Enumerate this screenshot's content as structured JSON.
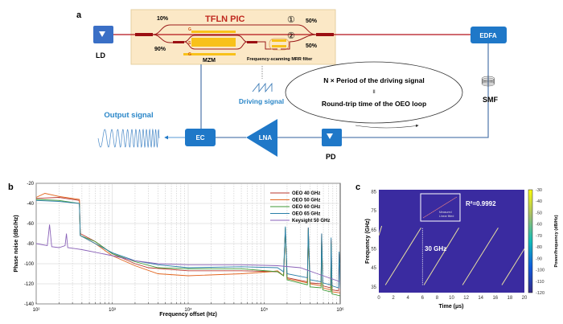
{
  "panel_a": {
    "label": "a",
    "pic_title": "TFLN PIC",
    "split_top": "10%",
    "split_bottom": "90%",
    "port1": "①",
    "port2": "②",
    "out_top": "50%",
    "out_bottom": "50%",
    "electrode_g1": "G",
    "electrode_s": "S",
    "electrode_g2": "G",
    "mzm": "MZM",
    "mrr": "Frequency-scanning MRR  filter",
    "ld": "LD",
    "edfa": "EDFA",
    "smf": "SMF",
    "pd": "PD",
    "lna": "LNA",
    "ec": "EC",
    "output": "Output signal",
    "driving": "Driving signal",
    "eq_top": "N × Period of the driving signal",
    "eq_mid": "II",
    "eq_bottom": "Round-trip time of the OEO loop",
    "colors": {
      "blue": "#1f78c8",
      "red": "#b3121a",
      "chip": "#fbe8c6",
      "electrode": "#f8c11a",
      "text_blue": "#2a86c8"
    }
  },
  "chart_data": [
    {
      "panel": "b",
      "type": "line",
      "xlabel": "Frequency offset (Hz)",
      "ylabel": "Phase noise (dBc/Hz)",
      "xscale": "log",
      "xlim": [
        100,
        1000000
      ],
      "ylim": [
        -140,
        -20
      ],
      "xticks": [
        "10²",
        "10³",
        "10⁴",
        "10⁵",
        "10⁶"
      ],
      "yticks": [
        "-20",
        "-40",
        "-60",
        "-80",
        "-100",
        "-120",
        "-140"
      ],
      "grid": true,
      "legend": "top-right",
      "series": [
        {
          "name": "OEO 40 GHz",
          "color": "#b8392f",
          "points": [
            [
              100,
              -35
            ],
            [
              200,
              -34
            ],
            [
              370,
              -37
            ],
            [
              380,
              -70
            ],
            [
              600,
              -78
            ],
            [
              1000,
              -90
            ],
            [
              2000,
              -100
            ],
            [
              3000,
              -104
            ],
            [
              10000,
              -107
            ],
            [
              50000,
              -107
            ],
            [
              150000,
              -108
            ],
            [
              180000,
              -112
            ],
            [
              190000,
              -65
            ],
            [
              200000,
              -114
            ],
            [
              370000,
              -118
            ],
            [
              380000,
              -64
            ],
            [
              400000,
              -119
            ],
            [
              560000,
              -120
            ],
            [
              570000,
              -70
            ],
            [
              590000,
              -122
            ],
            [
              750000,
              -124
            ],
            [
              760000,
              -76
            ],
            [
              780000,
              -126
            ],
            [
              950000,
              -127
            ],
            [
              970000,
              -90
            ],
            [
              1000000,
              -128
            ]
          ]
        },
        {
          "name": "OEO 50 GHz",
          "color": "#e2651e",
          "points": [
            [
              100,
              -34
            ],
            [
              130,
              -30
            ],
            [
              200,
              -33
            ],
            [
              370,
              -36
            ],
            [
              380,
              -72
            ],
            [
              600,
              -80
            ],
            [
              1000,
              -92
            ],
            [
              2000,
              -102
            ],
            [
              4000,
              -110
            ],
            [
              10000,
              -112
            ],
            [
              50000,
              -110
            ],
            [
              120000,
              -108
            ],
            [
              150000,
              -107
            ],
            [
              180000,
              -112
            ],
            [
              190000,
              -66
            ],
            [
              200000,
              -115
            ],
            [
              370000,
              -119
            ],
            [
              380000,
              -65
            ],
            [
              400000,
              -120
            ],
            [
              560000,
              -122
            ],
            [
              570000,
              -72
            ],
            [
              590000,
              -124
            ],
            [
              750000,
              -126
            ],
            [
              760000,
              -78
            ],
            [
              780000,
              -128
            ],
            [
              1000000,
              -129
            ]
          ]
        },
        {
          "name": "OEO 60 GHz",
          "color": "#3f9a36",
          "points": [
            [
              100,
              -36
            ],
            [
              200,
              -37
            ],
            [
              370,
              -40
            ],
            [
              380,
              -72
            ],
            [
              600,
              -78
            ],
            [
              1000,
              -90
            ],
            [
              2000,
              -98
            ],
            [
              4000,
              -104
            ],
            [
              10000,
              -105
            ],
            [
              50000,
              -105
            ],
            [
              150000,
              -108
            ],
            [
              180000,
              -112
            ],
            [
              190000,
              -64
            ],
            [
              200000,
              -116
            ],
            [
              370000,
              -121
            ],
            [
              380000,
              -66
            ],
            [
              400000,
              -123
            ],
            [
              560000,
              -124
            ],
            [
              570000,
              -74
            ],
            [
              590000,
              -126
            ],
            [
              750000,
              -128
            ],
            [
              760000,
              -80
            ],
            [
              780000,
              -130
            ],
            [
              1000000,
              -132
            ]
          ]
        },
        {
          "name": "OEO 65 GHz",
          "color": "#2a7fa8",
          "points": [
            [
              100,
              -37
            ],
            [
              200,
              -38
            ],
            [
              370,
              -40
            ],
            [
              380,
              -72
            ],
            [
              600,
              -80
            ],
            [
              1000,
              -89
            ],
            [
              2000,
              -97
            ],
            [
              4000,
              -101
            ],
            [
              10000,
              -104
            ],
            [
              50000,
              -103
            ],
            [
              150000,
              -104
            ],
            [
              180000,
              -108
            ],
            [
              190000,
              -63
            ],
            [
              200000,
              -110
            ],
            [
              370000,
              -114
            ],
            [
              380000,
              -64
            ],
            [
              400000,
              -116
            ],
            [
              560000,
              -118
            ],
            [
              570000,
              -70
            ],
            [
              590000,
              -119
            ],
            [
              750000,
              -121
            ],
            [
              760000,
              -74
            ],
            [
              780000,
              -122
            ],
            [
              950000,
              -124
            ],
            [
              970000,
              -88
            ],
            [
              1000000,
              -125
            ]
          ]
        },
        {
          "name": "Keysight 50 GHz",
          "color": "#8a62b8",
          "points": [
            [
              100,
              -80
            ],
            [
              140,
              -82
            ],
            [
              150,
              -61
            ],
            [
              160,
              -83
            ],
            [
              200,
              -84
            ],
            [
              240,
              -82
            ],
            [
              250,
              -70
            ],
            [
              260,
              -84
            ],
            [
              330,
              -85
            ],
            [
              400,
              -86
            ],
            [
              1000,
              -92
            ],
            [
              2000,
              -97
            ],
            [
              4000,
              -100
            ],
            [
              10000,
              -101
            ],
            [
              50000,
              -101
            ],
            [
              150000,
              -102
            ],
            [
              300000,
              -104
            ],
            [
              500000,
              -110
            ],
            [
              1000000,
              -118
            ]
          ]
        }
      ]
    },
    {
      "panel": "c",
      "type": "heatmap",
      "xlabel": "Time (μs)",
      "ylabel": "Frequency (GHz)",
      "xlim": [
        0,
        20
      ],
      "ylim": [
        32,
        86
      ],
      "xticks": [
        "0",
        "2",
        "4",
        "6",
        "8",
        "10",
        "12",
        "14",
        "16",
        "18",
        "20"
      ],
      "yticks": [
        "35",
        "45",
        "55",
        "65",
        "75",
        "85"
      ],
      "colorbar_label": "Power/frequency (dB/Hz)",
      "colorbar_ticks": [
        "-30",
        "-40",
        "-50",
        "-60",
        "-70",
        "-80",
        "-90",
        "-100",
        "-110",
        "-120"
      ],
      "colorbar_range": [
        -120,
        -30
      ],
      "background_color": "#3a2ba0",
      "sweeps": [
        [
          [
            0,
            62
          ],
          [
            0.4,
            67
          ]
        ],
        [
          [
            0.9,
            36
          ],
          [
            5.8,
            66
          ]
        ],
        [
          [
            6.2,
            36
          ],
          [
            11,
            66
          ]
        ],
        [
          [
            11.5,
            36
          ],
          [
            16.4,
            66
          ]
        ],
        [
          [
            16.9,
            36
          ],
          [
            20,
            55
          ]
        ]
      ],
      "bandwidth_label": "30 GHz",
      "r_squared": "R²=0.9992",
      "inset_legend": [
        "Measured",
        "Linear fitted"
      ]
    }
  ]
}
